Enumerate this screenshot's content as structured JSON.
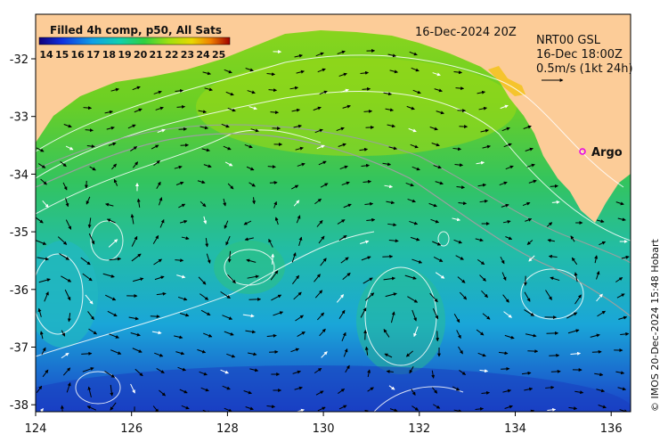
{
  "map": {
    "title_product": "Filled 4h comp, p50, All Sats",
    "date_label": "16-Dec-2024 20Z",
    "overlay": {
      "line1": "NRT00 GSL",
      "line2": "16-Dec 18:00Z",
      "line3": "0.5m/s (1kt 24h)"
    },
    "argo_label": "Argo",
    "credit": "© IMOS 20-Dec-2024 15:48 Hobart",
    "colorbar_ticks": [
      "14",
      "15",
      "16",
      "17",
      "18",
      "19",
      "20",
      "21",
      "22",
      "23",
      "24",
      "25"
    ],
    "lon_ticks": [
      "124",
      "126",
      "128",
      "130",
      "132",
      "134",
      "136"
    ],
    "lat_ticks": [
      "-32",
      "-33",
      "-34",
      "-35",
      "-36",
      "-37",
      "-38"
    ],
    "colors": {
      "land": "#fccc98",
      "cold": "#1b48c8",
      "cool": "#22b8cc",
      "mid": "#2fcc6a",
      "warm": "#7fd616",
      "argo": "#e600e6",
      "contour": "#ffffff",
      "arrow": "#000000"
    }
  }
}
